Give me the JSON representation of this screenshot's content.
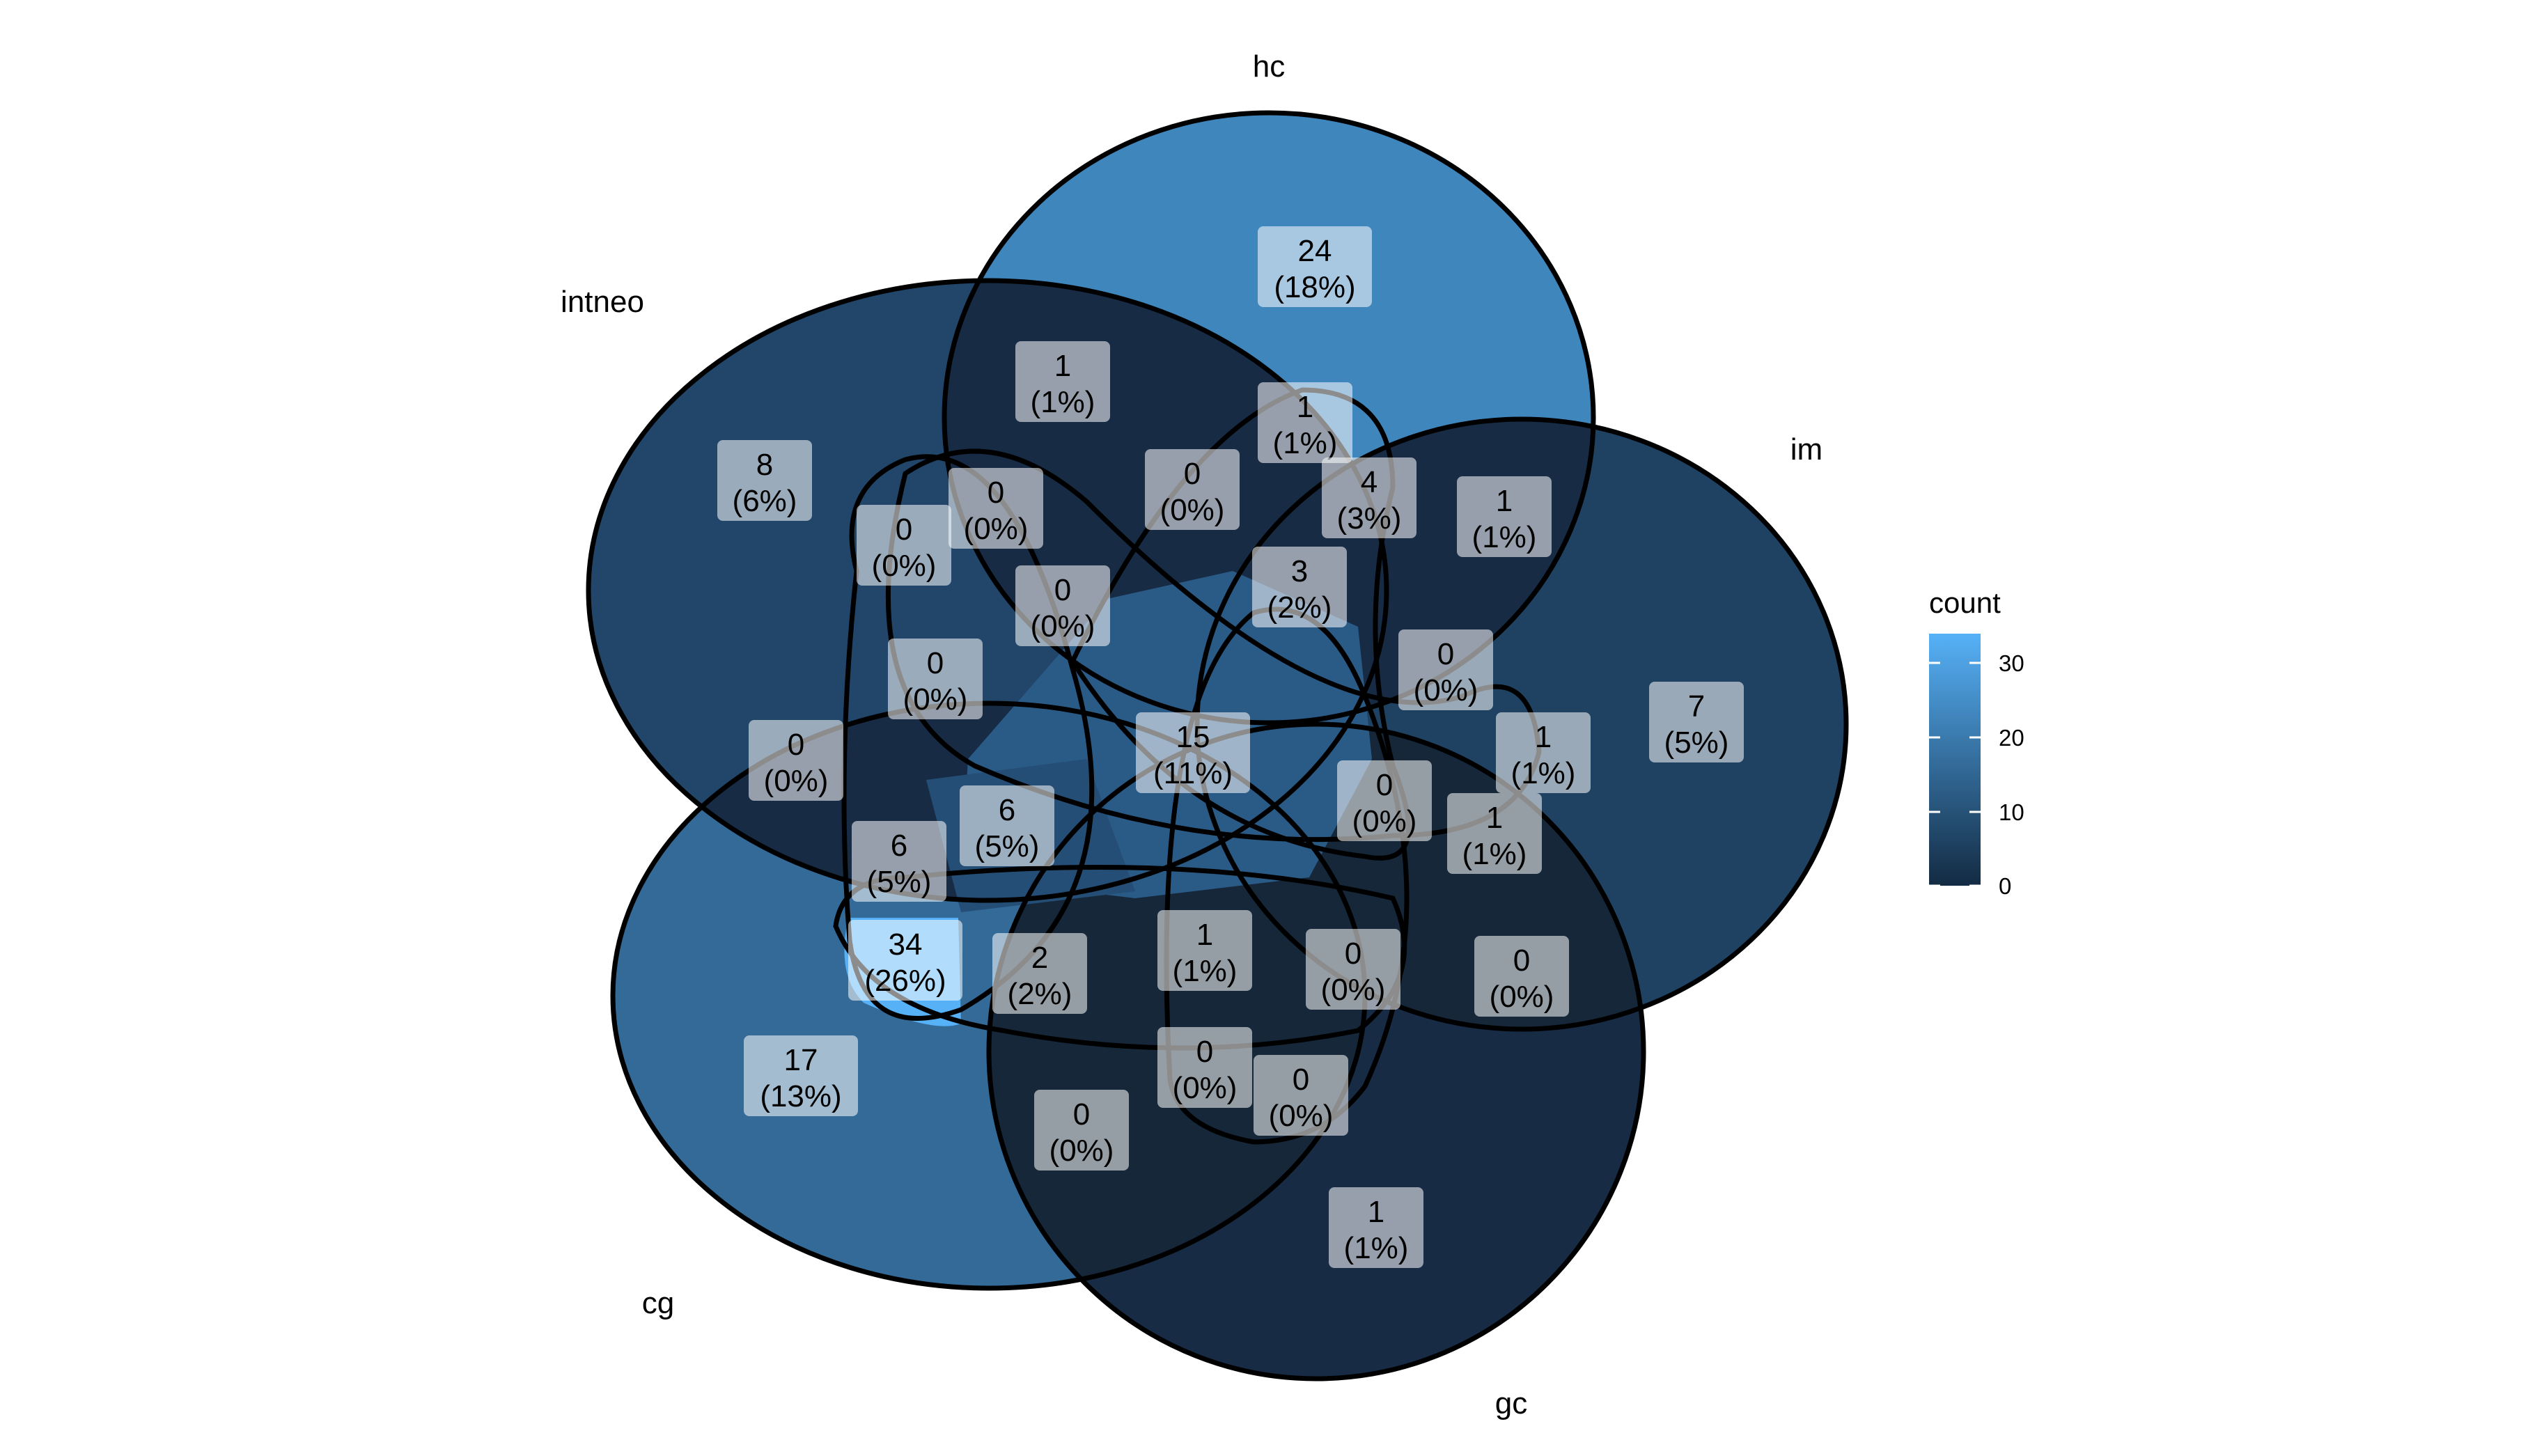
{
  "sets": [
    {
      "key": "hc",
      "label": "hc"
    },
    {
      "key": "intneo",
      "label": "intneo"
    },
    {
      "key": "im",
      "label": "im"
    },
    {
      "key": "cg",
      "label": "cg"
    },
    {
      "key": "gc",
      "label": "gc"
    }
  ],
  "regions": [
    {
      "id": "hc-only",
      "count": "24",
      "pct": "(18%)",
      "color": "#3F86BD"
    },
    {
      "id": "hc-intneo",
      "count": "1",
      "pct": "(1%)",
      "color": "#172B45"
    },
    {
      "id": "hc-im-cg",
      "count": "1",
      "pct": "(1%)",
      "color": "#172B45"
    },
    {
      "id": "intneo-only",
      "count": "8",
      "pct": "(6%)",
      "color": "#21466A"
    },
    {
      "id": "intneo-im-gc",
      "count": "0",
      "pct": "(0%)",
      "color": "#132235"
    },
    {
      "id": "hc-intneo-im-gc",
      "count": "0",
      "pct": "(0%)",
      "color": "#132235"
    },
    {
      "id": "hc-intneo-cg",
      "count": "0",
      "pct": "(0%)",
      "color": "#132235"
    },
    {
      "id": "hc-im-cg-gc",
      "count": "4",
      "pct": "(3%)",
      "color": "#1A3350"
    },
    {
      "id": "hc-im",
      "count": "1",
      "pct": "(1%)",
      "color": "#172B45"
    },
    {
      "id": "hc-intneo-im-cg-gc-center-upper",
      "count": "3",
      "pct": "(2%)",
      "color": "#1A3350"
    },
    {
      "id": "hc-intneo-im",
      "count": "0",
      "pct": "(0%)",
      "color": "#132235"
    },
    {
      "id": "intneo-gc-cg",
      "count": "0",
      "pct": "(0%)",
      "color": "#132235"
    },
    {
      "id": "hc-intneo-gc",
      "count": "0",
      "pct": "(0%)",
      "color": "#132235"
    },
    {
      "id": "hc-im-gc",
      "count": "0",
      "pct": "(0%)",
      "color": "#132235"
    },
    {
      "id": "im-only",
      "count": "7",
      "pct": "(5%)",
      "color": "#1F4263"
    },
    {
      "id": "all-five",
      "count": "15",
      "pct": "(11%)",
      "color": "#2A5A86"
    },
    {
      "id": "im-cg",
      "count": "1",
      "pct": "(1%)",
      "color": "#172B45"
    },
    {
      "id": "intneo-cg",
      "count": "0",
      "pct": "(0%)",
      "color": "#132235"
    },
    {
      "id": "hc-intneo-im-cg",
      "count": "0",
      "pct": "(0%)",
      "color": "#132235"
    },
    {
      "id": "hc-im-gc-cg",
      "count": "1",
      "pct": "(1%)",
      "color": "#172B45"
    },
    {
      "id": "intneo-cg-gc",
      "count": "6",
      "pct": "(5%)",
      "color": "#244E76"
    },
    {
      "id": "intneo-cg-only",
      "count": "6",
      "pct": "(5%)",
      "color": "#244E76"
    },
    {
      "id": "cg-gc",
      "count": "34",
      "pct": "(26%)",
      "color": "#56B1F7"
    },
    {
      "id": "intneo-cg-gc-im",
      "count": "2",
      "pct": "(2%)",
      "color": "#1A3350"
    },
    {
      "id": "cg-gc-im",
      "count": "1",
      "pct": "(1%)",
      "color": "#172B45"
    },
    {
      "id": "im-gc",
      "count": "0",
      "pct": "(0%)",
      "color": "#132235"
    },
    {
      "id": "im-gc-outer",
      "count": "0",
      "pct": "(0%)",
      "color": "#132235"
    },
    {
      "id": "cg-only",
      "count": "17",
      "pct": "(13%)",
      "color": "#336A98"
    },
    {
      "id": "cg-gc-lower",
      "count": "0",
      "pct": "(0%)",
      "color": "#132235"
    },
    {
      "id": "hc-cg-gc",
      "count": "0",
      "pct": "(0%)",
      "color": "#132235"
    },
    {
      "id": "hc-im-gc-lower",
      "count": "0",
      "pct": "(0%)",
      "color": "#132235"
    },
    {
      "id": "gc-only",
      "count": "1",
      "pct": "(1%)",
      "color": "#172B45"
    }
  ],
  "legend": {
    "title": "count",
    "ticks": [
      "30",
      "20",
      "10",
      "0"
    ],
    "colors": {
      "low": "#132B43",
      "high": "#56B1F7"
    }
  }
}
